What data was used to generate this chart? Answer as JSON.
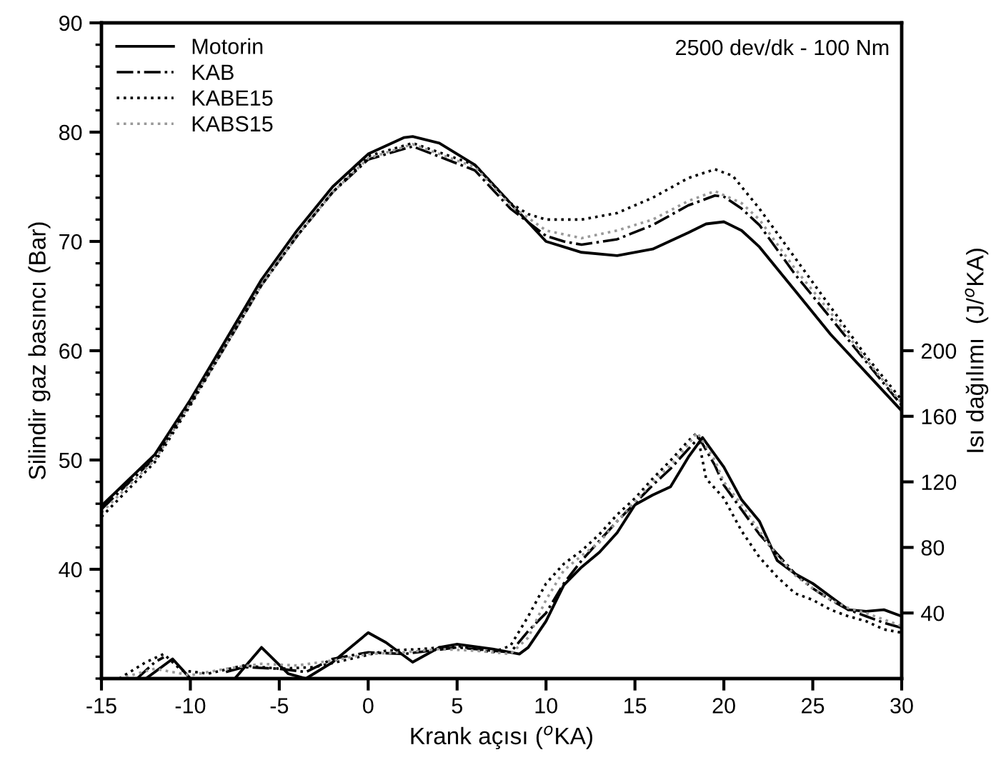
{
  "chart_data": {
    "type": "line",
    "xlabel": "Krank açısı ($^{o}$KA)",
    "ylabel": "Silindir gaz basıncı (Bar)",
    "y2label": "Isı dağılımı  (J/$^{o}$KA)",
    "annotations": [
      "2500 dev/dk - 100 Nm"
    ],
    "xlim": [
      -15,
      30
    ],
    "xticks": [
      -15,
      -10,
      -5,
      0,
      5,
      10,
      15,
      20,
      25,
      30
    ],
    "ylim": [
      30,
      90
    ],
    "yticks": [
      40,
      50,
      60,
      70,
      80,
      90
    ],
    "y2lim": [
      0,
      400
    ],
    "y2ticks": [
      40,
      80,
      120,
      160,
      200
    ],
    "legend": "top left",
    "grid": false,
    "series": [
      {
        "name": "Motorin",
        "color": "#000000",
        "line_style": "solid",
        "axis": "y",
        "x": [
          -15,
          -12,
          -10,
          -8,
          -6,
          -4,
          -2,
          0,
          2,
          2.5,
          4,
          6,
          8,
          10,
          11,
          12,
          14,
          16,
          18,
          19,
          20,
          21,
          22,
          24,
          26,
          28,
          30
        ],
        "values": [
          45.8,
          50.5,
          55.5,
          61,
          66.5,
          71,
          75,
          78,
          79.5,
          79.6,
          79,
          77,
          73.5,
          70,
          69.5,
          69,
          68.7,
          69.3,
          70.8,
          71.6,
          71.8,
          71,
          69.5,
          65.5,
          61.5,
          58,
          54.5
        ]
      },
      {
        "name": "KAB",
        "color": "#000000",
        "line_style": "dashdot",
        "axis": "y",
        "x": [
          -15,
          -12,
          -10,
          -8,
          -6,
          -4,
          -2,
          0,
          2.5,
          6,
          8,
          10,
          11,
          12,
          14,
          16,
          18,
          19.5,
          20,
          21,
          22,
          24,
          26,
          28,
          30
        ],
        "values": [
          45.5,
          50.2,
          55.2,
          60.5,
          66,
          70.5,
          74.5,
          77.5,
          78.7,
          76.5,
          73,
          70.5,
          70,
          69.7,
          70.2,
          71.5,
          73.3,
          74.2,
          74.1,
          73,
          71.5,
          67,
          63,
          59,
          55
        ]
      },
      {
        "name": "KABE15",
        "color": "#000000",
        "line_style": "dotted",
        "axis": "y",
        "x": [
          -15,
          -12,
          -10,
          -8,
          -6,
          -4,
          -2,
          0,
          2.5,
          6,
          8,
          9,
          10,
          12,
          14,
          16,
          18,
          19.5,
          20.5,
          22,
          24,
          26,
          28,
          30
        ],
        "values": [
          44.8,
          49.8,
          55,
          60.5,
          66,
          70.5,
          74.5,
          77.8,
          79,
          77,
          73.5,
          72.5,
          72,
          72,
          72.6,
          74,
          75.8,
          76.6,
          76,
          73,
          68.5,
          64,
          59.5,
          55.5
        ]
      },
      {
        "name": "KABS15",
        "color": "#999999",
        "line_style": "dotted",
        "axis": "y",
        "x": [
          -15,
          -12,
          -10,
          -8,
          -6,
          -4,
          -2,
          0,
          2.5,
          6,
          8,
          10,
          12,
          14,
          16,
          18,
          19.5,
          21,
          22,
          24,
          26,
          28,
          30
        ],
        "values": [
          45.2,
          50,
          55.2,
          60.5,
          66,
          70.5,
          74.5,
          77.6,
          78.9,
          76.8,
          73.3,
          71,
          70.3,
          71,
          72,
          73.7,
          74.6,
          73.5,
          72,
          67.5,
          63.5,
          59.2,
          55.2
        ]
      },
      {
        "color": "#000000",
        "line_style": "solid",
        "axis": "y2",
        "x": [
          -12.5,
          -11,
          -10,
          -9,
          -7.5,
          -6,
          -4.5,
          -3.5,
          -2,
          0,
          1,
          2.5,
          4,
          5,
          7,
          8.5,
          9,
          10,
          11,
          12,
          13,
          14,
          15,
          16,
          17,
          18,
          18.8,
          20,
          21,
          22,
          23,
          24,
          25,
          26,
          27,
          28,
          29,
          30
        ],
        "values": [
          0,
          12,
          0,
          null,
          0,
          19,
          3,
          0,
          10,
          28,
          22,
          10,
          19,
          21,
          18,
          15,
          19,
          35,
          57,
          68,
          77,
          89,
          106,
          112,
          117,
          135,
          147,
          129,
          109,
          96,
          72,
          64,
          58,
          50,
          42,
          41,
          42,
          38
        ]
      },
      {
        "color": "#000000",
        "line_style": "dashdot",
        "axis": "y2",
        "x": [
          -13,
          -12,
          -11.5,
          -11,
          -8,
          -7,
          -5,
          -3.5,
          -2,
          0,
          2,
          5,
          8,
          9,
          10,
          11,
          12,
          13,
          14,
          15,
          16,
          17,
          18,
          18.6,
          19.5,
          20,
          21,
          22,
          23,
          24,
          25,
          26,
          27,
          28,
          29,
          30
        ],
        "values": [
          0,
          10,
          13,
          null,
          4,
          7,
          6,
          4,
          12,
          16,
          15,
          19,
          16,
          29,
          40,
          58,
          72,
          84,
          96,
          107,
          118,
          128,
          140,
          147,
          130,
          118,
          103,
          88,
          76,
          64,
          55,
          48,
          42,
          38,
          34,
          31
        ]
      },
      {
        "color": "#000000",
        "line_style": "dotted",
        "axis": "y2",
        "x": [
          -14,
          -12.5,
          -11.5,
          -10.5,
          -9,
          -7,
          -5,
          -3,
          -1,
          1,
          3,
          5,
          7,
          8,
          9,
          10,
          11,
          12,
          13,
          14,
          15,
          16,
          17,
          18,
          18.5,
          19,
          20,
          21,
          22,
          23,
          24,
          25,
          26,
          27,
          28,
          29,
          30
        ],
        "values": [
          0,
          10,
          15,
          5,
          3,
          8,
          6,
          7,
          12,
          17,
          18,
          20,
          16,
          20,
          38,
          58,
          70,
          78,
          88,
          100,
          110,
          122,
          133,
          145,
          150,
          122,
          110,
          90,
          74,
          62,
          52,
          48,
          42,
          38,
          35,
          30,
          28
        ]
      },
      {
        "color": "#999999",
        "line_style": "dotted",
        "axis": "y2",
        "x": [
          -14,
          -12,
          -10,
          -8,
          -6,
          -4,
          -2,
          0,
          2,
          4,
          6,
          8,
          9,
          10,
          11,
          12,
          13,
          14,
          15,
          16,
          17,
          18,
          18.5,
          19.5,
          20,
          21,
          22,
          23,
          24,
          25,
          26,
          27,
          28,
          29,
          30
        ],
        "values": [
          0,
          6,
          2,
          6,
          9,
          8,
          11,
          15,
          16,
          18,
          17,
          15,
          25,
          48,
          66,
          75,
          83,
          96,
          108,
          120,
          130,
          143,
          150,
          133,
          120,
          106,
          90,
          75,
          63,
          55,
          48,
          43,
          40,
          36,
          32
        ]
      }
    ]
  }
}
